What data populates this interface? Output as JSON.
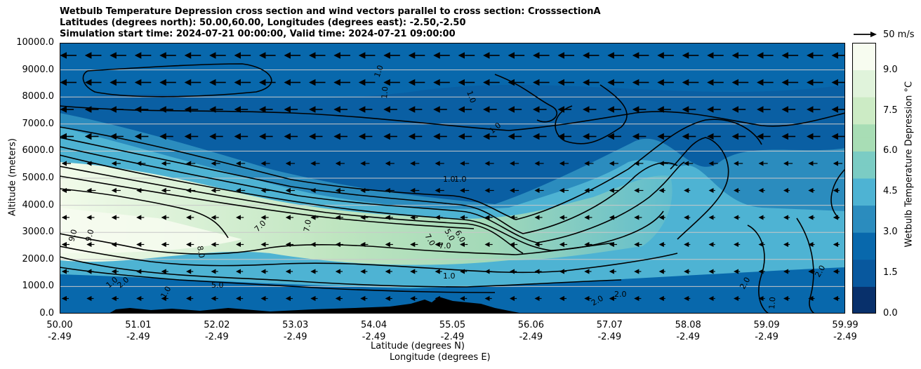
{
  "chart_data": {
    "type": "heatmap",
    "title_lines": [
      "Wetbulb Temperature Depression cross section and wind vectors parallel to cross section: CrosssectionA",
      "Latitudes (degrees north): 50.00,60.00, Longitudes (degrees east): -2.50,-2.50",
      "Simulation start time: 2024-07-21 00:00:00, Valid time: 2024-07-21 09:00:00"
    ],
    "ylabel": "Altitude (meters)",
    "xlabel_lines": [
      "Latitude (degrees N)",
      "Longitude (degrees E)"
    ],
    "y_ticks": [
      "0.0",
      "1000.0",
      "2000.0",
      "3000.0",
      "4000.0",
      "5000.0",
      "6000.0",
      "7000.0",
      "8000.0",
      "9000.0",
      "10000.0"
    ],
    "ylim": [
      0,
      10000
    ],
    "x_ticks": [
      {
        "lat": "50.00",
        "lon": "-2.49"
      },
      {
        "lat": "51.01",
        "lon": "-2.49"
      },
      {
        "lat": "52.02",
        "lon": "-2.49"
      },
      {
        "lat": "53.03",
        "lon": "-2.49"
      },
      {
        "lat": "54.04",
        "lon": "-2.49"
      },
      {
        "lat": "55.05",
        "lon": "-2.49"
      },
      {
        "lat": "56.06",
        "lon": "-2.49"
      },
      {
        "lat": "57.07",
        "lon": "-2.49"
      },
      {
        "lat": "58.08",
        "lon": "-2.49"
      },
      {
        "lat": "59.09",
        "lon": "-2.49"
      },
      {
        "lat": "59.99",
        "lon": "-2.49"
      }
    ],
    "grid": "horizontal",
    "colorbar": {
      "label": "Wetbulb Temperature Depression °C",
      "ticks": [
        "0.0",
        "1.5",
        "3.0",
        "4.5",
        "6.0",
        "7.5",
        "9.0"
      ],
      "range": [
        0,
        10
      ],
      "colors": [
        "#08306b",
        "#08589e",
        "#0868ac",
        "#2b8cbe",
        "#4eb3d3",
        "#7bccc4",
        "#a8ddb5",
        "#ccebc5",
        "#e0f3db",
        "#f7fcf0"
      ]
    },
    "wind_reference": "50 m/s",
    "contour_labels": [
      "1.0",
      "2.0",
      "5.0",
      "6.0",
      "7.0",
      "8.0",
      "9.0"
    ]
  }
}
